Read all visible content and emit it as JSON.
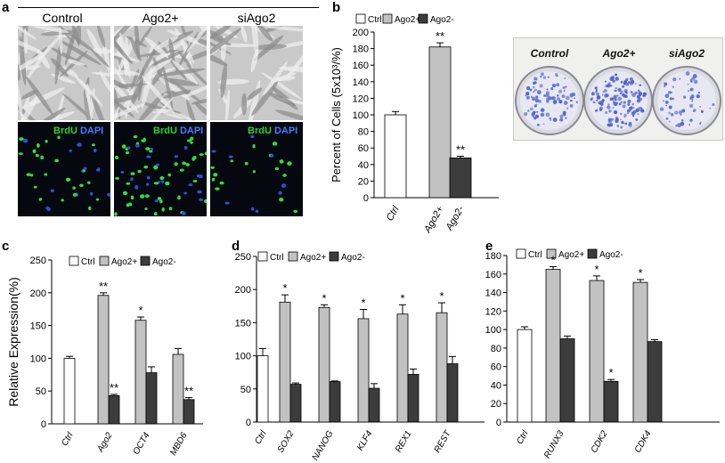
{
  "panel_labels": {
    "a": "a",
    "b": "b",
    "c": "c",
    "d": "d",
    "e": "e"
  },
  "panel_a": {
    "columns": [
      "Control",
      "Ago2+",
      "siAgo2"
    ],
    "stain": {
      "brdu": "BrdU",
      "dapi": "DAPI"
    }
  },
  "plates": {
    "labels": [
      "Control",
      "Ago2+",
      "siAgo2"
    ]
  },
  "colors": {
    "ctrl": "#ffffff",
    "ago2_plus": "#c2c2c2",
    "ago2_minus": "#3c3c3c",
    "plate_stain": "#4a5fc8"
  },
  "chart_data": [
    {
      "id": "b",
      "type": "bar",
      "categories": [
        "Ctrl",
        "Ago2+",
        "Ago2-"
      ],
      "series": [
        {
          "name": "",
          "values": [
            100,
            182,
            48
          ],
          "errors": [
            4,
            5,
            2
          ]
        }
      ],
      "significance": [
        "",
        "**",
        "**"
      ],
      "legend": [
        "Ctrl",
        "Ago2+",
        "Ago2-"
      ],
      "ylabel": "Percent of Cells  (5x10³/%)",
      "ylim": [
        0,
        200
      ],
      "yticks": [
        "0",
        "20",
        "40",
        "60",
        "80",
        "100",
        "120",
        "140",
        "160",
        "180",
        "200"
      ]
    },
    {
      "id": "c",
      "type": "bar",
      "categories": [
        "Ago2",
        "OCT4",
        "MBD6"
      ],
      "control": {
        "name": "Ctrl",
        "value": 100,
        "error": 3
      },
      "series": [
        {
          "name": "Ago2+",
          "values": [
            196,
            158,
            106
          ],
          "errors": [
            4,
            5,
            9
          ],
          "significance": [
            "**",
            "*",
            ""
          ]
        },
        {
          "name": "Ago2-",
          "values": [
            43,
            78,
            37
          ],
          "errors": [
            2,
            9,
            3
          ],
          "significance": [
            "**",
            "",
            "**"
          ]
        }
      ],
      "xlabels": [
        "Ctrl",
        "Ago2",
        "OCT4",
        "MBD6"
      ],
      "legend": [
        "Ctrl",
        "Ago2+",
        "Ago2-"
      ],
      "ylabel": "Relative Expression(%)",
      "ylim": [
        0,
        250
      ],
      "yticks": [
        "0",
        "50",
        "100",
        "150",
        "200",
        "250"
      ]
    },
    {
      "id": "d",
      "type": "bar",
      "categories": [
        "SOX2",
        "NANOG",
        "KLF4",
        "REX1",
        "REST"
      ],
      "control": {
        "name": "Ctrl",
        "value": 100,
        "error": 11
      },
      "series": [
        {
          "name": "Ago2+",
          "values": [
            181,
            173,
            156,
            163,
            165
          ],
          "errors": [
            11,
            4,
            14,
            14,
            15
          ],
          "significance": [
            "*",
            "*",
            "*",
            "*",
            "*"
          ]
        },
        {
          "name": "Ago2-",
          "values": [
            57,
            61,
            51,
            72,
            88
          ],
          "errors": [
            2,
            1,
            7,
            8,
            11
          ],
          "significance": [
            "",
            "",
            "",
            "",
            ""
          ]
        }
      ],
      "xlabels": [
        "Ctrl",
        "SOX2",
        "NANOG",
        "KLF4",
        "REX1",
        "REST"
      ],
      "legend": [
        "Ctrl",
        "Ago2+",
        "Ago2-"
      ],
      "ylabel": "Relative Expression(%)",
      "ylim": [
        0,
        250
      ],
      "yticks": [
        "0",
        "50",
        "100",
        "150",
        "200",
        "250"
      ]
    },
    {
      "id": "e",
      "type": "bar",
      "categories": [
        "RUNX3",
        "CDK2",
        "CDK4"
      ],
      "control": {
        "name": "Ctrl",
        "value": 100,
        "error": 3
      },
      "series": [
        {
          "name": "Ago2+",
          "values": [
            165,
            153,
            151
          ],
          "errors": [
            3,
            5,
            3
          ],
          "significance": [
            "*",
            "*",
            "*"
          ]
        },
        {
          "name": "Ago2-",
          "values": [
            90,
            44,
            87
          ],
          "errors": [
            3,
            2,
            2
          ],
          "significance": [
            "",
            "*",
            ""
          ]
        }
      ],
      "xlabels": [
        "Ctrl",
        "RUNX3",
        "CDK2",
        "CDK4"
      ],
      "legend": [
        "Ctrl",
        "Ago2+",
        "Ago2-"
      ],
      "ylabel": "Relative Expression(%)",
      "ylim": [
        0,
        180
      ],
      "yticks": [
        "0",
        "20",
        "40",
        "60",
        "80",
        "100",
        "120",
        "140",
        "160",
        "180"
      ]
    }
  ]
}
